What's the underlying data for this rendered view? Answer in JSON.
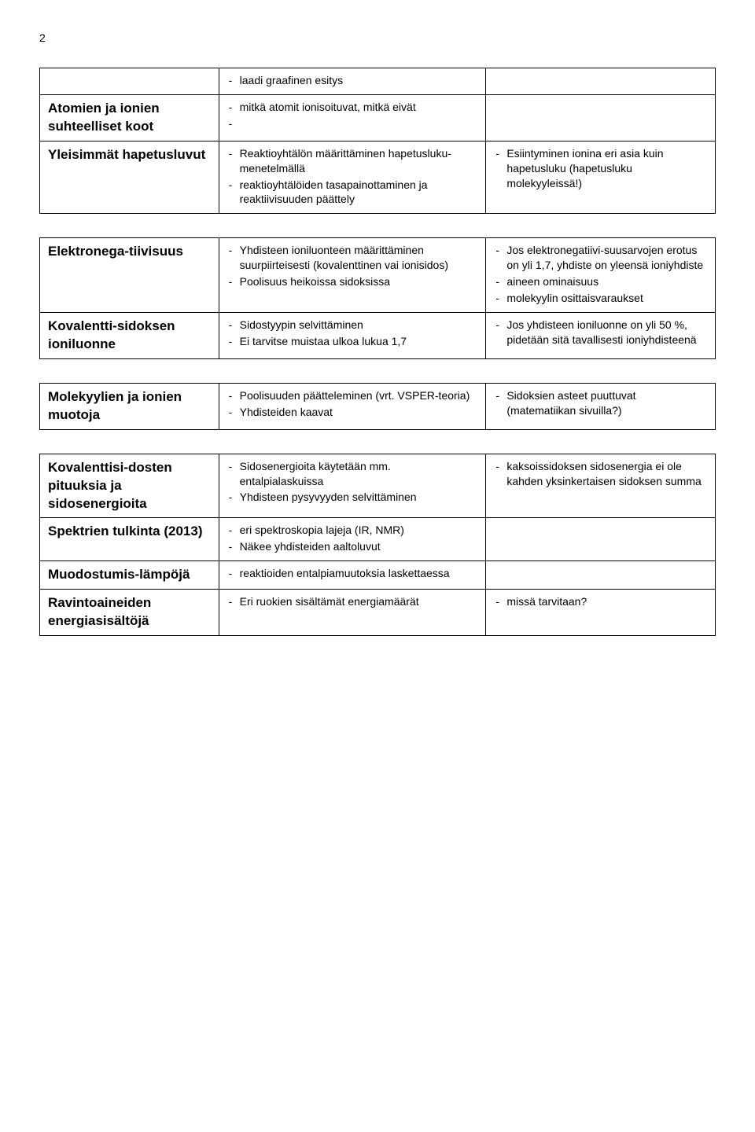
{
  "pageNumber": "2",
  "table1": {
    "rows": [
      {
        "heading": "",
        "mid": [
          "laadi graafinen esitys"
        ],
        "right": []
      },
      {
        "heading": "Atomien ja ionien suhteelliset koot",
        "mid": [
          "mitkä atomit ionisoituvat, mitkä eivät",
          ""
        ],
        "right": []
      },
      {
        "heading": "Yleisimmät hapetusluvut",
        "mid": [
          "Reaktioyhtälön määrittäminen hapetusluku-menetelmällä",
          "reaktioyhtälöiden tasapainottaminen ja reaktiivisuuden päättely"
        ],
        "right": [
          "Esiintyminen ionina eri asia kuin hapetusluku (hapetusluku molekyyleissä!)"
        ]
      }
    ]
  },
  "table2": {
    "rows": [
      {
        "heading": "Elektronega-tiivisuus",
        "mid": [
          "Yhdisteen ioniluonteen määrittäminen suurpiirteisesti (kovalenttinen vai ionisidos)",
          "Poolisuus heikoissa sidoksissa"
        ],
        "right": [
          "Jos elektronegatiivi-suusarvojen erotus on yli 1,7, yhdiste on yleensä ioniyhdiste",
          "aineen ominaisuus",
          "molekyylin osittaisvaraukset"
        ]
      },
      {
        "heading": "Kovalentti-sidoksen ioniluonne",
        "mid": [
          "Sidostyypin selvittäminen",
          "Ei tarvitse muistaa ulkoa lukua 1,7"
        ],
        "right": [
          "Jos yhdisteen ioniluonne on yli 50 %, pidetään sitä tavallisesti ioniyhdisteenä"
        ]
      }
    ]
  },
  "table3": {
    "rows": [
      {
        "heading": "Molekyylien ja ionien muotoja",
        "mid": [
          "Poolisuuden päätteleminen (vrt. VSPER-teoria)",
          "Yhdisteiden kaavat"
        ],
        "right": [
          "Sidoksien asteet puuttuvat (matematiikan sivuilla?)"
        ]
      }
    ]
  },
  "table4": {
    "rows": [
      {
        "heading": "Kovalenttisi-dosten pituuksia ja sidosenergioita",
        "mid": [
          "Sidosenergioita käytetään mm. entalpialaskuissa",
          "Yhdisteen pysyvyyden selvittäminen"
        ],
        "right": [
          "kaksoissidoksen sidosenergia ei ole kahden yksinkertaisen sidoksen summa"
        ]
      },
      {
        "heading": "Spektrien tulkinta (2013)",
        "mid": [
          "eri spektroskopia lajeja (IR, NMR)",
          "Näkee yhdisteiden aaltoluvut"
        ],
        "right": []
      },
      {
        "heading": "Muodostumis-lämpöjä",
        "mid": [
          "reaktioiden entalpiamuutoksia laskettaessa"
        ],
        "right": []
      },
      {
        "heading": "Ravintoaineiden energiasisältöjä",
        "mid": [
          "Eri ruokien sisältämät energiamäärät"
        ],
        "right": [
          "missä tarvitaan?"
        ]
      }
    ]
  }
}
